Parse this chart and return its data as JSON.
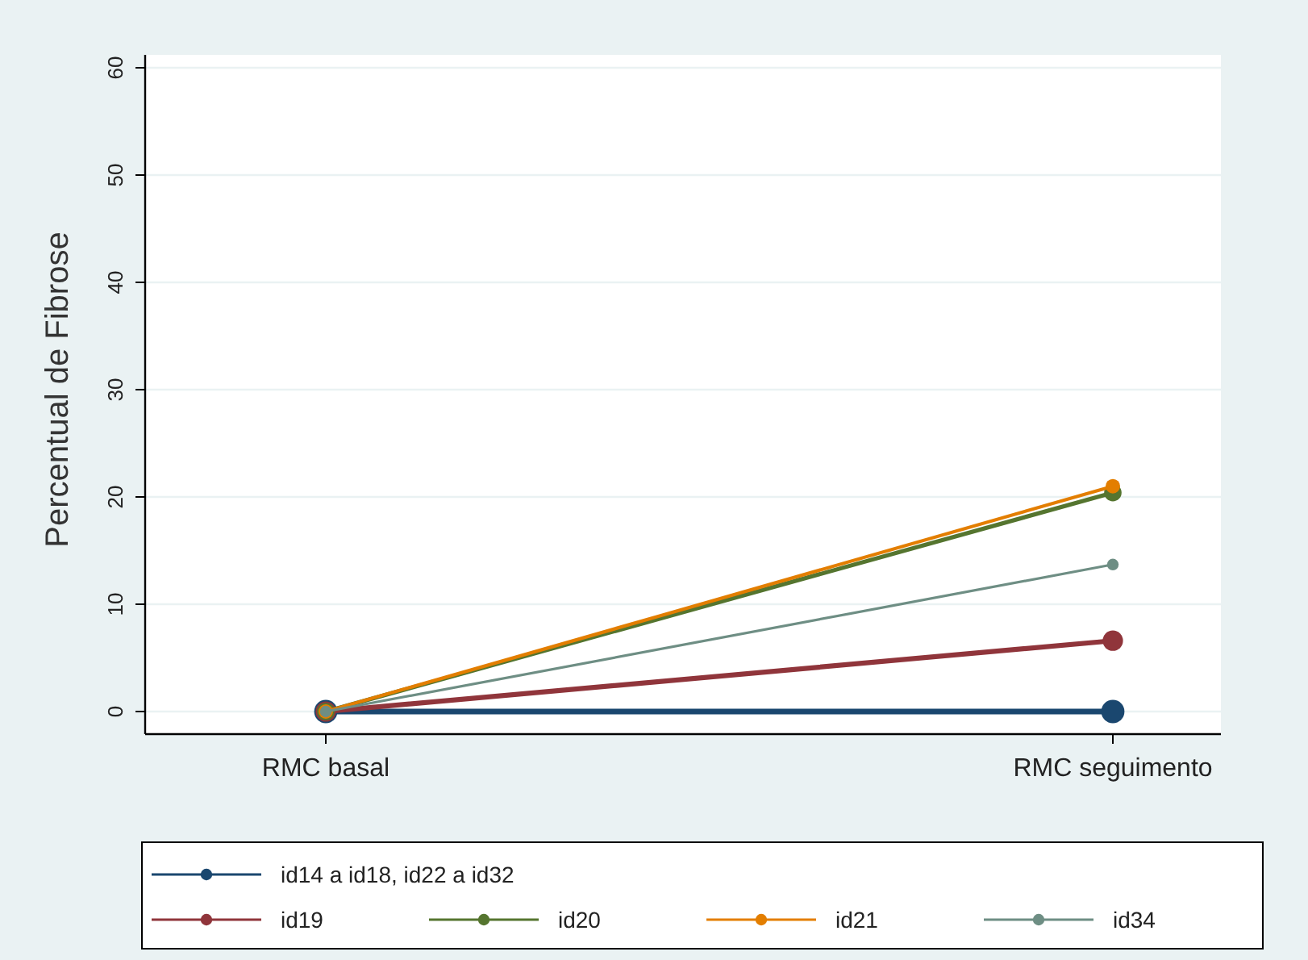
{
  "chart_data": {
    "type": "line",
    "ylabel": "Percentual de Fibrose",
    "categories": [
      "RMC basal",
      "RMC seguimento"
    ],
    "ylim": [
      0,
      60
    ],
    "yticks": [
      0,
      10,
      20,
      30,
      40,
      50,
      60
    ],
    "grid": "y",
    "legend": "bottom",
    "marker": "circle",
    "line_style": "solid",
    "series": [
      {
        "name": "id14 a id18, id22 a id32",
        "color": "#1a476f",
        "values": [
          0,
          0
        ]
      },
      {
        "name": "id19",
        "color": "#90353b",
        "values": [
          0,
          6.6
        ]
      },
      {
        "name": "id20",
        "color": "#55752f",
        "values": [
          0,
          20.4
        ]
      },
      {
        "name": "id21",
        "color": "#e37e00",
        "values": [
          0,
          21
        ]
      },
      {
        "name": "id34",
        "color": "#6e8e84",
        "values": [
          0,
          13.7
        ]
      }
    ]
  }
}
